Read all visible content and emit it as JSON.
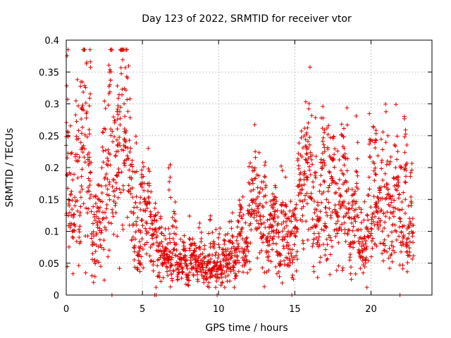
{
  "chart_data": {
    "type": "scatter",
    "title": "Day 123 of 2022, SRMTID for receiver vtor",
    "xlabel": "GPS time / hours",
    "ylabel": "SRMTID / TECUs",
    "xlim": [
      0,
      24
    ],
    "ylim": [
      0,
      0.4
    ],
    "xticks": [
      0,
      5,
      10,
      15,
      20
    ],
    "xtick_labels": [
      "0",
      "5",
      "10",
      "15",
      "20"
    ],
    "yticks": [
      0,
      0.05,
      0.1,
      0.15,
      0.2,
      0.25,
      0.3,
      0.35,
      0.4
    ],
    "ytick_labels": [
      "0",
      "0.05",
      "0.1",
      "0.15",
      "0.2",
      "0.25",
      "0.3",
      "0.35",
      "0.4"
    ],
    "grid": true,
    "marker": "+",
    "series": [
      {
        "name": "SRMTID",
        "color": "#e00000",
        "envelope": [
          [
            0.0,
            0.2
          ],
          [
            0.3,
            0.15
          ],
          [
            0.6,
            0.14
          ],
          [
            1.0,
            0.22
          ],
          [
            1.3,
            0.28
          ],
          [
            1.6,
            0.19
          ],
          [
            2.0,
            0.1
          ],
          [
            2.4,
            0.13
          ],
          [
            2.8,
            0.26
          ],
          [
            3.2,
            0.22
          ],
          [
            3.6,
            0.2
          ],
          [
            4.0,
            0.19
          ],
          [
            4.5,
            0.1
          ],
          [
            5.0,
            0.12
          ],
          [
            5.5,
            0.1
          ],
          [
            6.0,
            0.08
          ],
          [
            6.5,
            0.08
          ],
          [
            7.0,
            0.07
          ],
          [
            7.5,
            0.06
          ],
          [
            8.0,
            0.045
          ],
          [
            8.5,
            0.05
          ],
          [
            9.0,
            0.06
          ],
          [
            9.5,
            0.05
          ],
          [
            10.0,
            0.045
          ],
          [
            10.5,
            0.05
          ],
          [
            11.0,
            0.06
          ],
          [
            11.5,
            0.08
          ],
          [
            12.0,
            0.1
          ],
          [
            12.5,
            0.11
          ],
          [
            13.0,
            0.1
          ],
          [
            13.5,
            0.09
          ],
          [
            14.0,
            0.08
          ],
          [
            14.5,
            0.075
          ],
          [
            15.0,
            0.12
          ],
          [
            15.5,
            0.15
          ],
          [
            16.0,
            0.17
          ],
          [
            16.5,
            0.12
          ],
          [
            17.0,
            0.14
          ],
          [
            17.5,
            0.15
          ],
          [
            18.0,
            0.14
          ],
          [
            18.5,
            0.13
          ],
          [
            19.0,
            0.1
          ],
          [
            19.5,
            0.09
          ],
          [
            20.0,
            0.12
          ],
          [
            20.5,
            0.14
          ],
          [
            21.0,
            0.13
          ],
          [
            21.5,
            0.12
          ],
          [
            22.0,
            0.13
          ],
          [
            22.5,
            0.1
          ],
          [
            22.8,
            0.09
          ]
        ],
        "spikes": [
          [
            0.05,
            0.26
          ],
          [
            1.0,
            0.345
          ],
          [
            1.5,
            0.22
          ],
          [
            2.85,
            0.375
          ],
          [
            3.4,
            0.33
          ],
          [
            3.8,
            0.265
          ],
          [
            4.9,
            0.2
          ],
          [
            6.8,
            0.21
          ],
          [
            9.4,
            0.14
          ],
          [
            13.6,
            0.17
          ],
          [
            15.8,
            0.28
          ],
          [
            16.9,
            0.245
          ],
          [
            18.2,
            0.285
          ],
          [
            20.3,
            0.265
          ],
          [
            22.3,
            0.24
          ]
        ],
        "zero_points": [
          3.0,
          5.8,
          5.9,
          9.9,
          14.8,
          21.9
        ],
        "point_count": 2000
      }
    ]
  }
}
